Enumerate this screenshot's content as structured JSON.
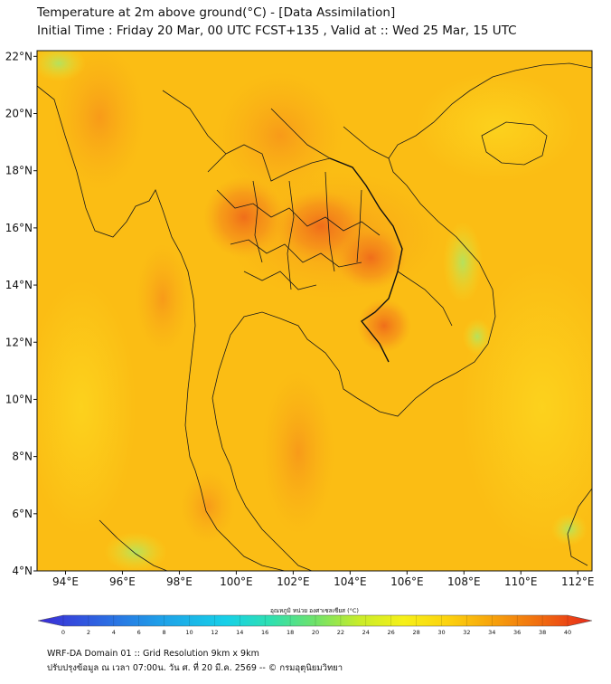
{
  "title": {
    "line1": "Temperature at 2m above ground(°C) - [Data Assimilation]",
    "line2": "Initial Time : Friday 20 Mar, 00 UTC FCST+135 , Valid at :: Wed 25 Mar, 15 UTC"
  },
  "map": {
    "lon_range": [
      93,
      112.5
    ],
    "lat_range": [
      4,
      22.2
    ],
    "lon_ticks": [
      "94°E",
      "96°E",
      "98°E",
      "100°E",
      "102°E",
      "104°E",
      "106°E",
      "108°E",
      "110°E",
      "112°E"
    ],
    "lat_ticks": [
      "4°N",
      "6°N",
      "8°N",
      "10°N",
      "12°N",
      "14°N",
      "16°N",
      "18°N",
      "20°N",
      "22°N"
    ],
    "field_base_color": "#fbbf12"
  },
  "colorbar": {
    "label": "อุณหภูมิ หน่วย องศาเซลเซียส (°C)",
    "min": 0,
    "max": 40,
    "ticks": [
      "0",
      "2",
      "4",
      "6",
      "8",
      "10",
      "12",
      "14",
      "16",
      "18",
      "20",
      "22",
      "24",
      "26",
      "28",
      "30",
      "32",
      "34",
      "36",
      "38",
      "40"
    ],
    "colors": [
      "#3b2bd6",
      "#2f5fe0",
      "#1f9fe8",
      "#17d0e8",
      "#2fe0b0",
      "#6fe26a",
      "#c8ec2a",
      "#f6f018",
      "#fcd20e",
      "#f7a30c",
      "#f06a10",
      "#e8281a"
    ]
  },
  "footer": {
    "line1": "WRF-DA Domain 01 :: Grid Resolution 9km x 9km",
    "line2": "ปรับปรุงข้อมูล ณ เวลา 07:00น. วัน ศ. ที่ 20 มี.ค. 2569 -- © กรมอุตุนิยมวิทยา"
  }
}
